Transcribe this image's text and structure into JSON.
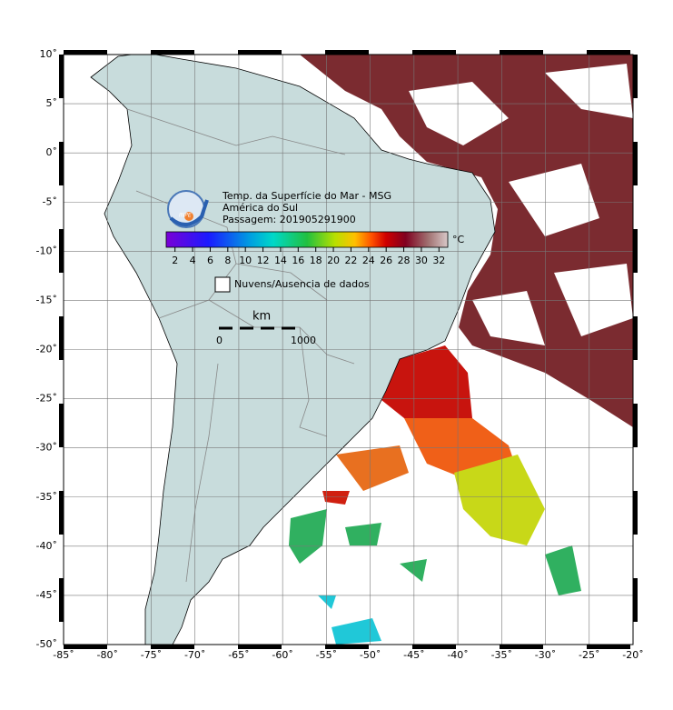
{
  "map": {
    "title": "Temp. da Superfície do Mar - MSG",
    "region": "América do Sul",
    "pass": "Passagem: 201905291900",
    "logo": "INPE",
    "xlim": [
      -85,
      -20
    ],
    "ylim": [
      -50,
      10
    ],
    "xticks": [
      {
        "value": -85,
        "label": "-85˚"
      },
      {
        "value": -80,
        "label": "-80˚"
      },
      {
        "value": -75,
        "label": "-75˚"
      },
      {
        "value": -70,
        "label": "-70˚"
      },
      {
        "value": -65,
        "label": "-65˚"
      },
      {
        "value": -60,
        "label": "-60˚"
      },
      {
        "value": -55,
        "label": "-55˚"
      },
      {
        "value": -50,
        "label": "-50˚"
      },
      {
        "value": -45,
        "label": "-45˚"
      },
      {
        "value": -40,
        "label": "-40˚"
      },
      {
        "value": -35,
        "label": "-35˚"
      },
      {
        "value": -30,
        "label": "-30˚"
      },
      {
        "value": -25,
        "label": "-25˚"
      },
      {
        "value": -20,
        "label": "-20˚"
      }
    ],
    "yticks": [
      {
        "value": 10,
        "label": "10˚"
      },
      {
        "value": 5,
        "label": "5˚"
      },
      {
        "value": 0,
        "label": "0˚"
      },
      {
        "value": -5,
        "label": "-5˚"
      },
      {
        "value": -10,
        "label": "-10˚"
      },
      {
        "value": -15,
        "label": "-15˚"
      },
      {
        "value": -20,
        "label": "-20˚"
      },
      {
        "value": -25,
        "label": "-25˚"
      },
      {
        "value": -30,
        "label": "-30˚"
      },
      {
        "value": -35,
        "label": "-35˚"
      },
      {
        "value": -40,
        "label": "-40˚"
      },
      {
        "value": -45,
        "label": "-45˚"
      },
      {
        "value": -50,
        "label": "-50˚"
      }
    ],
    "grid": true,
    "colorbar": {
      "unit": "°C",
      "range": [
        1,
        33
      ],
      "ticks": [
        2,
        4,
        6,
        8,
        10,
        12,
        14,
        16,
        18,
        20,
        22,
        24,
        26,
        28,
        30,
        32
      ]
    },
    "legend": "Nuvens/Ausencia de dados",
    "scale": {
      "unit": "km",
      "start": "0",
      "end": "1000"
    }
  }
}
